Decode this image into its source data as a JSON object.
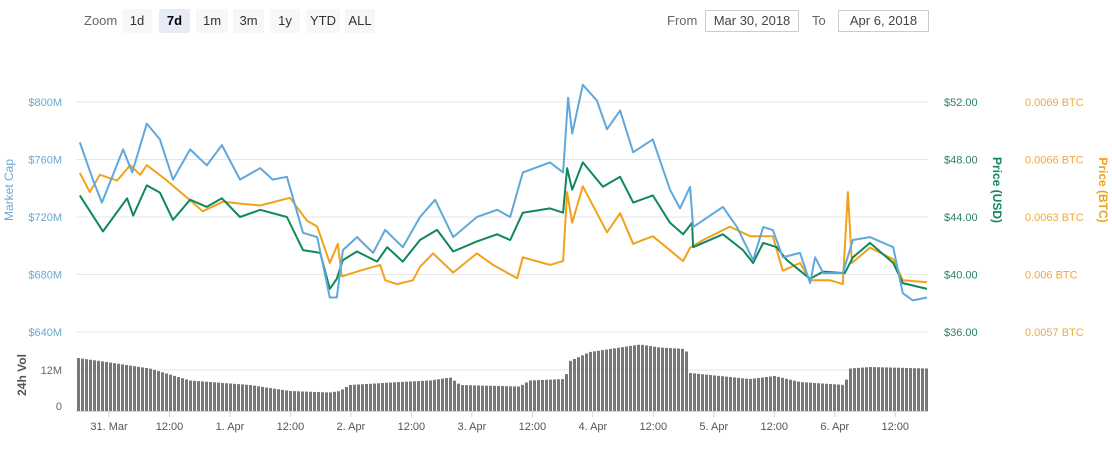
{
  "range_selector": {
    "zoom_label": "Zoom",
    "buttons": [
      "1d",
      "7d",
      "1m",
      "3m",
      "1y",
      "YTD",
      "ALL"
    ],
    "selected": "7d",
    "from_label": "From",
    "from_value": "Mar 30, 2018",
    "to_label": "To",
    "to_value": "Apr 6, 2018"
  },
  "colors": {
    "market_cap": "#5fa8dc",
    "price_usd": "#10875c",
    "price_btc": "#f1a21c",
    "volume": "#777777",
    "grid": "#e6e6e6"
  },
  "chart_data": {
    "type": "line",
    "time_unit": "hours since Mar 30, 2018 00:00",
    "x_range": [
      17.5,
      186.5
    ],
    "x_ticks": [
      {
        "h": 24,
        "label": "31. Mar"
      },
      {
        "h": 36,
        "label": "12:00"
      },
      {
        "h": 48,
        "label": "1. Apr"
      },
      {
        "h": 60,
        "label": "12:00"
      },
      {
        "h": 72,
        "label": "2. Apr"
      },
      {
        "h": 84,
        "label": "12:00"
      },
      {
        "h": 96,
        "label": "3. Apr"
      },
      {
        "h": 108,
        "label": "12:00"
      },
      {
        "h": 120,
        "label": "4. Apr"
      },
      {
        "h": 132,
        "label": "12:00"
      },
      {
        "h": 144,
        "label": "5. Apr"
      },
      {
        "h": 156,
        "label": "12:00"
      },
      {
        "h": 168,
        "label": "6. Apr"
      },
      {
        "h": 180,
        "label": "12:00"
      }
    ],
    "axes": {
      "market_cap": {
        "title": "Market Cap",
        "range": [
          640,
          800
        ],
        "ticks": [
          "$800M",
          "$760M",
          "$720M",
          "$680M",
          "$640M"
        ]
      },
      "price_usd": {
        "title": "Price (USD)",
        "range": [
          36,
          52
        ],
        "ticks": [
          "$52.00",
          "$48.00",
          "$44.00",
          "$40.00",
          "$36.00"
        ]
      },
      "price_btc": {
        "title": "Price (BTC)",
        "range": [
          0.0057,
          0.0069
        ],
        "ticks": [
          "0.0069 BTC",
          "0.0066 BTC",
          "0.0063 BTC",
          "0.006 BTC",
          "0.0057 BTC"
        ]
      },
      "volume": {
        "title": "24h Vol",
        "range": [
          0,
          20.5
        ],
        "ticks": [
          "12M",
          "0"
        ]
      }
    },
    "series": [
      {
        "name": "Market Cap",
        "unit": "$M",
        "points": [
          [
            18.2,
            772
          ],
          [
            20.8,
            746
          ],
          [
            22.6,
            730
          ],
          [
            26.8,
            767
          ],
          [
            28.6,
            751
          ],
          [
            31.5,
            785
          ],
          [
            34.1,
            774
          ],
          [
            36.7,
            746
          ],
          [
            40.1,
            767
          ],
          [
            43.4,
            756
          ],
          [
            46.4,
            770
          ],
          [
            50.0,
            746
          ],
          [
            54.0,
            754
          ],
          [
            56.5,
            746
          ],
          [
            59.3,
            748
          ],
          [
            62.5,
            709
          ],
          [
            65.3,
            706
          ],
          [
            67.8,
            664
          ],
          [
            69.2,
            664
          ],
          [
            70.4,
            697
          ],
          [
            73.2,
            706
          ],
          [
            76.4,
            695
          ],
          [
            78.8,
            711
          ],
          [
            82.3,
            699
          ],
          [
            85.7,
            720
          ],
          [
            88.7,
            732
          ],
          [
            92.3,
            706
          ],
          [
            97.0,
            720
          ],
          [
            101.0,
            725
          ],
          [
            103.6,
            720
          ],
          [
            106.1,
            751
          ],
          [
            111.5,
            758
          ],
          [
            114.1,
            751
          ],
          [
            115.1,
            803
          ],
          [
            115.9,
            778
          ],
          [
            118.0,
            812
          ],
          [
            120.8,
            801
          ],
          [
            122.8,
            781
          ],
          [
            125.4,
            794
          ],
          [
            128.0,
            765
          ],
          [
            131.9,
            774
          ],
          [
            135.3,
            739
          ],
          [
            137.3,
            726
          ],
          [
            139.3,
            741
          ],
          [
            139.9,
            713
          ],
          [
            145.8,
            727
          ],
          [
            148.6,
            713
          ],
          [
            151.8,
            690
          ],
          [
            153.8,
            713
          ],
          [
            155.7,
            711
          ],
          [
            157.7,
            692
          ],
          [
            161.1,
            695
          ],
          [
            163.1,
            674
          ],
          [
            164.1,
            692
          ],
          [
            165.7,
            681
          ],
          [
            169.6,
            681
          ],
          [
            171.6,
            704
          ],
          [
            175.0,
            706
          ],
          [
            179.6,
            699
          ],
          [
            181.5,
            667
          ],
          [
            183.5,
            662
          ],
          [
            186.3,
            664
          ]
        ]
      },
      {
        "name": "Price (USD)",
        "unit": "$",
        "points": [
          [
            18.2,
            45.5
          ],
          [
            22.8,
            43.0
          ],
          [
            27.6,
            45.3
          ],
          [
            28.8,
            44.1
          ],
          [
            31.5,
            46.2
          ],
          [
            34.1,
            45.7
          ],
          [
            36.7,
            43.8
          ],
          [
            40.1,
            45.2
          ],
          [
            43.4,
            44.7
          ],
          [
            46.4,
            45.3
          ],
          [
            50.0,
            44.0
          ],
          [
            54.0,
            44.5
          ],
          [
            59.3,
            44.0
          ],
          [
            62.5,
            41.7
          ],
          [
            65.9,
            41.5
          ],
          [
            67.8,
            39.0
          ],
          [
            69.2,
            39.7
          ],
          [
            70.4,
            41.0
          ],
          [
            73.2,
            41.6
          ],
          [
            77.2,
            40.9
          ],
          [
            79.2,
            41.9
          ],
          [
            82.3,
            40.9
          ],
          [
            85.7,
            42.4
          ],
          [
            89.1,
            43.1
          ],
          [
            92.3,
            41.6
          ],
          [
            97.0,
            42.3
          ],
          [
            101.0,
            42.8
          ],
          [
            103.6,
            42.4
          ],
          [
            106.1,
            44.3
          ],
          [
            111.5,
            44.6
          ],
          [
            114.1,
            44.3
          ],
          [
            114.9,
            47.4
          ],
          [
            115.9,
            45.9
          ],
          [
            118.0,
            47.8
          ],
          [
            122.0,
            46.1
          ],
          [
            125.4,
            46.8
          ],
          [
            128.0,
            45.0
          ],
          [
            131.9,
            45.5
          ],
          [
            135.3,
            43.6
          ],
          [
            137.9,
            42.8
          ],
          [
            139.7,
            43.6
          ],
          [
            139.9,
            41.9
          ],
          [
            145.8,
            42.8
          ],
          [
            149.8,
            41.7
          ],
          [
            151.8,
            40.8
          ],
          [
            153.8,
            42.2
          ],
          [
            156.5,
            41.9
          ],
          [
            158.5,
            41.0
          ],
          [
            163.1,
            39.7
          ],
          [
            165.7,
            40.2
          ],
          [
            170.0,
            40.1
          ],
          [
            171.6,
            41.2
          ],
          [
            175.0,
            42.2
          ],
          [
            179.6,
            40.8
          ],
          [
            181.5,
            39.4
          ],
          [
            186.3,
            39.0
          ]
        ]
      },
      {
        "name": "Price (BTC)",
        "unit": "BTC",
        "points": [
          [
            18.2,
            0.00653
          ],
          [
            20.2,
            0.00643
          ],
          [
            22.2,
            0.00652
          ],
          [
            25.6,
            0.00649
          ],
          [
            28.2,
            0.00657
          ],
          [
            30.2,
            0.00652
          ],
          [
            31.5,
            0.00657
          ],
          [
            35.5,
            0.00649
          ],
          [
            39.5,
            0.0064
          ],
          [
            42.6,
            0.00633
          ],
          [
            46.6,
            0.00638
          ],
          [
            50.0,
            0.00637
          ],
          [
            54.0,
            0.00636
          ],
          [
            59.9,
            0.0064
          ],
          [
            63.3,
            0.00628
          ],
          [
            65.3,
            0.00625
          ],
          [
            67.8,
            0.00606
          ],
          [
            69.4,
            0.00616
          ],
          [
            70.2,
            0.00599
          ],
          [
            73.8,
            0.00602
          ],
          [
            77.8,
            0.00605
          ],
          [
            78.8,
            0.00597
          ],
          [
            81.1,
            0.00595
          ],
          [
            84.3,
            0.00597
          ],
          [
            85.7,
            0.00604
          ],
          [
            88.3,
            0.00611
          ],
          [
            92.3,
            0.00601
          ],
          [
            97.0,
            0.00611
          ],
          [
            100.2,
            0.00605
          ],
          [
            105.0,
            0.00598
          ],
          [
            106.1,
            0.00609
          ],
          [
            111.5,
            0.00605
          ],
          [
            114.1,
            0.00607
          ],
          [
            114.9,
            0.00643
          ],
          [
            115.9,
            0.00627
          ],
          [
            118.0,
            0.00646
          ],
          [
            122.8,
            0.00622
          ],
          [
            125.4,
            0.00632
          ],
          [
            128.0,
            0.00616
          ],
          [
            131.9,
            0.0062
          ],
          [
            137.9,
            0.00607
          ],
          [
            139.3,
            0.00614
          ],
          [
            141.9,
            0.00618
          ],
          [
            147.2,
            0.00625
          ],
          [
            151.2,
            0.0062
          ],
          [
            155.7,
            0.0062
          ],
          [
            157.7,
            0.00602
          ],
          [
            161.1,
            0.00606
          ],
          [
            163.1,
            0.00597
          ],
          [
            167.1,
            0.00597
          ],
          [
            169.6,
            0.00595
          ],
          [
            170.6,
            0.00643
          ],
          [
            171.4,
            0.00606
          ],
          [
            175.0,
            0.00614
          ],
          [
            179.6,
            0.00608
          ],
          [
            181.5,
            0.00597
          ],
          [
            186.3,
            0.00596
          ]
        ]
      },
      {
        "name": "24h Vol",
        "unit": "$M",
        "type": "bar",
        "points": [
          [
            17.8,
            16
          ],
          [
            22.2,
            15
          ],
          [
            32.1,
            12.5
          ],
          [
            40.1,
            8.5
          ],
          [
            52,
            7
          ],
          [
            59.9,
            5
          ],
          [
            67.8,
            4.5
          ],
          [
            69.8,
            5
          ],
          [
            71.8,
            7
          ],
          [
            81.7,
            8
          ],
          [
            87.7,
            8.5
          ],
          [
            91.7,
            9.5
          ],
          [
            93.7,
            7
          ],
          [
            105.5,
            6.5
          ],
          [
            107.5,
            8.5
          ],
          [
            114.5,
            9
          ],
          [
            115.5,
            15
          ],
          [
            119.4,
            18
          ],
          [
            129.4,
            20.5
          ],
          [
            133.3,
            19.5
          ],
          [
            138.5,
            19
          ],
          [
            139.3,
            11
          ],
          [
            151.2,
            9
          ],
          [
            156.1,
            10
          ],
          [
            161.1,
            8
          ],
          [
            170,
            7
          ],
          [
            171,
            12.5
          ],
          [
            175,
            13
          ],
          [
            186.5,
            12.5
          ]
        ]
      }
    ]
  }
}
